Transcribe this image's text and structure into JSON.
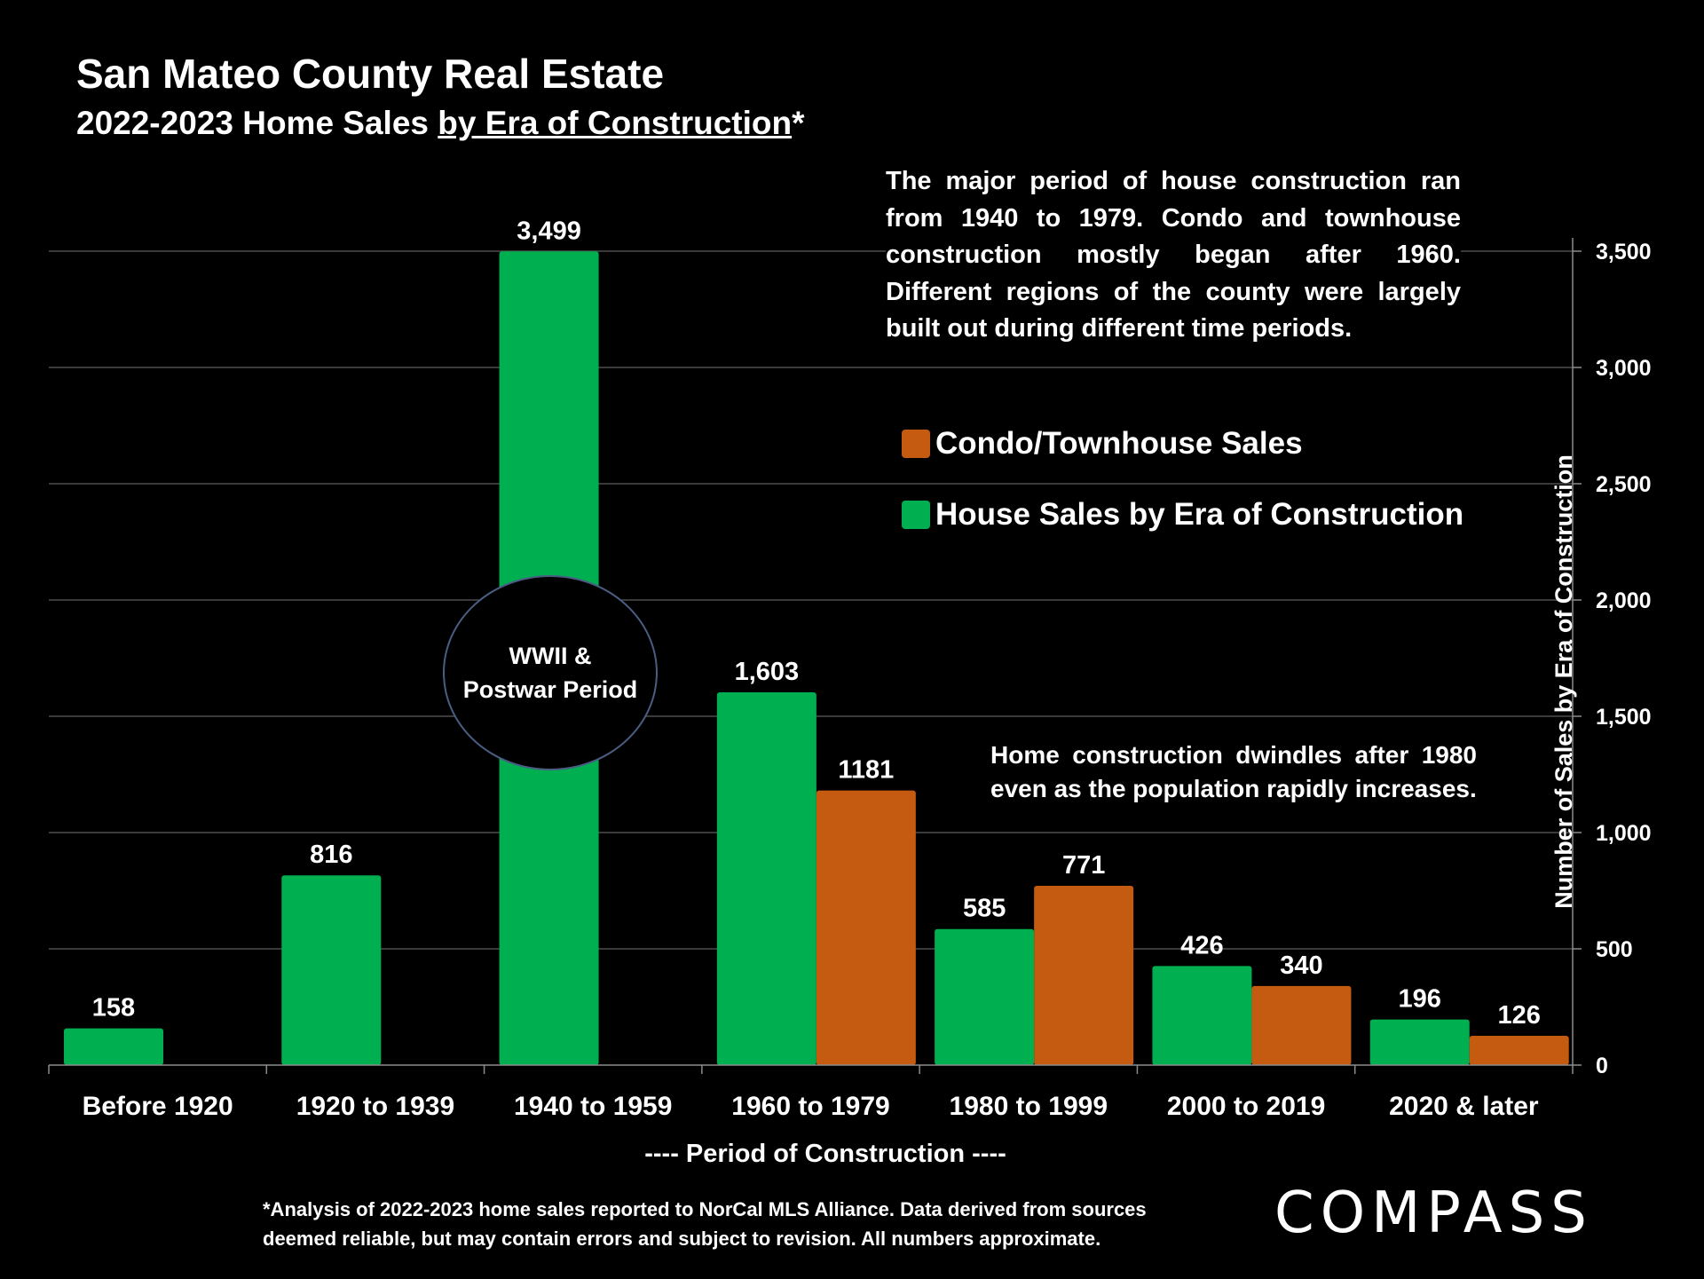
{
  "header": {
    "title": "San Mateo County Real Estate",
    "subtitle_prefix": "2022-2023 Home Sales ",
    "subtitle_underlined": "by Era of Construction",
    "subtitle_suffix": "*"
  },
  "annotations": {
    "note_top": "The major period of house construction ran from 1940 to 1979. Condo and townhouse construction mostly began after 1960. Different regions of the county were largely built out during different time periods.",
    "note_bottom": "Home construction dwindles after 1980 even as the population rapidly increases.",
    "circle_line1": "WWII &",
    "circle_line2": "Postwar Period"
  },
  "legend": {
    "condo_label": "Condo/Townhouse Sales",
    "house_label": "House Sales by Era of Construction"
  },
  "colors": {
    "house": "#00b050",
    "condo": "#c55a11",
    "grid": "#4d4d4d",
    "axis": "#8c8c8c",
    "text": "#ffffff",
    "background": "#000000"
  },
  "chart_data": {
    "type": "bar",
    "categories": [
      "Before 1920",
      "1920 to 1939",
      "1940 to 1959",
      "1960 to 1979",
      "1980 to 1999",
      "2000 to 2019",
      "2020 & later"
    ],
    "series": [
      {
        "name": "House Sales by Era of Construction",
        "values": [
          158,
          816,
          3499,
          1603,
          585,
          426,
          196
        ],
        "labels": [
          "158",
          "816",
          "3,499",
          "1,603",
          "585",
          "426",
          "196"
        ]
      },
      {
        "name": "Condo/Townhouse Sales",
        "values": [
          null,
          null,
          null,
          1181,
          771,
          340,
          126
        ],
        "labels": [
          "",
          "",
          "",
          "1181",
          "771",
          "340",
          "126"
        ]
      }
    ],
    "y_axis": {
      "label": "Number of Sales by Era of Construction",
      "position": "right",
      "ylim": [
        0,
        3500
      ],
      "ticks": [
        0,
        500,
        1000,
        1500,
        2000,
        2500,
        3000,
        3500
      ],
      "tick_labels": [
        "0",
        "500",
        "1,000",
        "1,500",
        "2,000",
        "2,500",
        "3,000",
        "3,500"
      ]
    },
    "x_axis": {
      "label": "----   Period of Construction ----"
    },
    "grid": true,
    "legend_position": "top-right"
  },
  "footer": {
    "footnote_line1": "*Analysis of 2022-2023 home sales reported to NorCal MLS Alliance.  Data derived from sources",
    "footnote_line2": "deemed reliable, but may contain errors and subject to revision. All numbers approximate.",
    "brand": "COMPASS"
  }
}
